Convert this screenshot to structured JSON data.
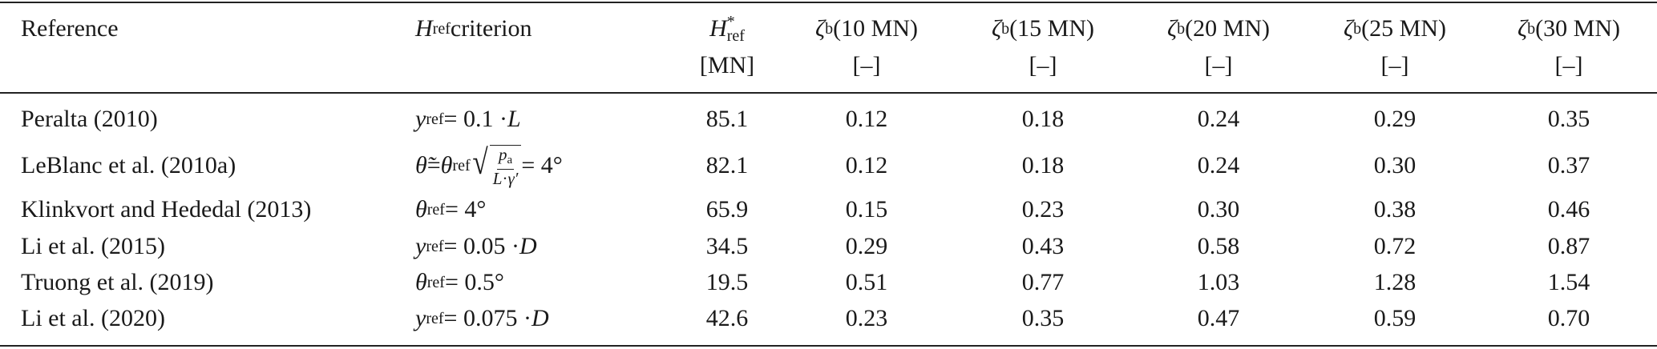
{
  "table": {
    "header": [
      {
        "line1": [
          {
            "text": "Reference"
          }
        ]
      },
      {
        "line1": [
          {
            "var": "H"
          },
          {
            "sub": "ref"
          },
          {
            "text": " criterion"
          }
        ]
      },
      {
        "line1": [
          {
            "var": "H"
          },
          {
            "supsub": {
              "sup": "*",
              "sub": "ref"
            }
          }
        ],
        "line2": [
          {
            "text": "[MN]"
          }
        ]
      },
      {
        "line1": [
          {
            "var": "ζ"
          },
          {
            "sub": "b"
          },
          {
            "text": " (10 MN)"
          }
        ],
        "line2": [
          {
            "text": "[–]"
          }
        ]
      },
      {
        "line1": [
          {
            "var": "ζ"
          },
          {
            "sub": "b"
          },
          {
            "text": " (15 MN)"
          }
        ],
        "line2": [
          {
            "text": "[–]"
          }
        ]
      },
      {
        "line1": [
          {
            "var": "ζ"
          },
          {
            "sub": "b"
          },
          {
            "text": " (20 MN)"
          }
        ],
        "line2": [
          {
            "text": "[–]"
          }
        ]
      },
      {
        "line1": [
          {
            "var": "ζ"
          },
          {
            "sub": "b"
          },
          {
            "text": " (25 MN)"
          }
        ],
        "line2": [
          {
            "text": "[–]"
          }
        ]
      },
      {
        "line1": [
          {
            "var": "ζ"
          },
          {
            "sub": "b"
          },
          {
            "text": " (30 MN)"
          }
        ],
        "line2": [
          {
            "text": "[–]"
          }
        ]
      }
    ],
    "rows": [
      {
        "reference": "Peralta (2010)",
        "criterion": [
          {
            "var": "y"
          },
          {
            "sub": "ref"
          },
          {
            "text": " = 0.1 · "
          },
          {
            "var": "L"
          }
        ],
        "h_ref": "85.1",
        "zeta": [
          "0.12",
          "0.18",
          "0.24",
          "0.29",
          "0.35"
        ]
      },
      {
        "reference": "LeBlanc et al. (2010a)",
        "criterion": [
          {
            "var": "θ̃"
          },
          {
            "text": " = "
          },
          {
            "var": "θ"
          },
          {
            "sub": "ref"
          },
          {
            "sqrt": {
              "num": [
                {
                  "var": "p"
                },
                {
                  "sub": "a"
                }
              ],
              "den": [
                {
                  "var": "L"
                },
                {
                  "text": "·"
                },
                {
                  "var": "γ′"
                }
              ]
            }
          },
          {
            "text": " = 4°"
          }
        ],
        "h_ref": "82.1",
        "zeta": [
          "0.12",
          "0.18",
          "0.24",
          "0.30",
          "0.37"
        ]
      },
      {
        "reference": "Klinkvort and Hededal (2013)",
        "criterion": [
          {
            "var": "θ"
          },
          {
            "sub": "ref"
          },
          {
            "text": " = 4°"
          }
        ],
        "h_ref": "65.9",
        "zeta": [
          "0.15",
          "0.23",
          "0.30",
          "0.38",
          "0.46"
        ]
      },
      {
        "reference": "Li et al. (2015)",
        "criterion": [
          {
            "var": "y"
          },
          {
            "sub": "ref"
          },
          {
            "text": " = 0.05 · "
          },
          {
            "var": "D"
          }
        ],
        "h_ref": "34.5",
        "zeta": [
          "0.29",
          "0.43",
          "0.58",
          "0.72",
          "0.87"
        ]
      },
      {
        "reference": "Truong et al. (2019)",
        "criterion": [
          {
            "var": "θ"
          },
          {
            "sub": "ref"
          },
          {
            "text": " = 0.5°"
          }
        ],
        "h_ref": "19.5",
        "zeta": [
          "0.51",
          "0.77",
          "1.03",
          "1.28",
          "1.54"
        ]
      },
      {
        "reference": "Li et al. (2020)",
        "criterion": [
          {
            "var": "y"
          },
          {
            "sub": "ref"
          },
          {
            "text": " = 0.075 · "
          },
          {
            "var": "D"
          }
        ],
        "h_ref": "42.6",
        "zeta": [
          "0.23",
          "0.35",
          "0.47",
          "0.59",
          "0.70"
        ]
      }
    ]
  }
}
